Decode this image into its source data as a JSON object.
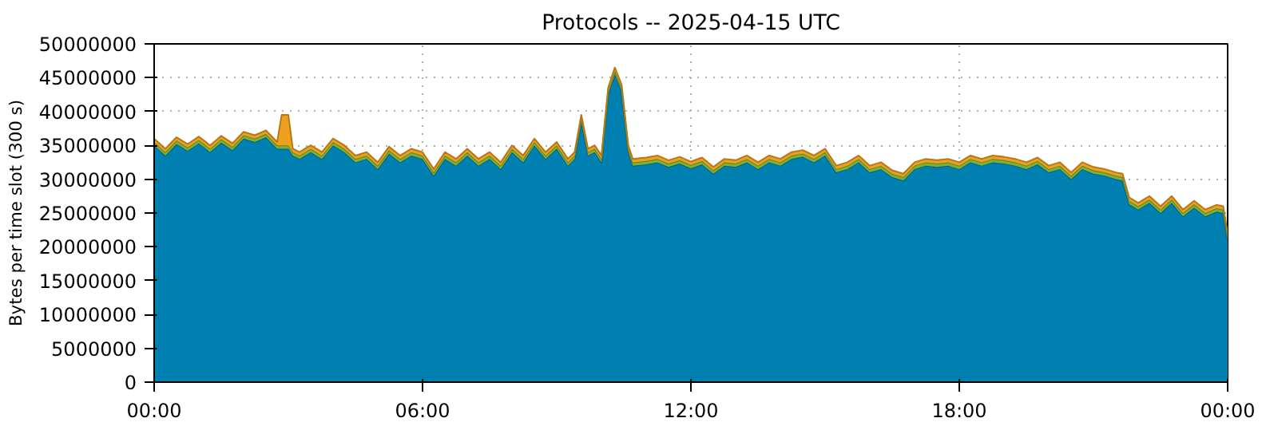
{
  "chart_data": {
    "type": "area",
    "stacked": true,
    "title": "Protocols -- 2025-04-15 UTC",
    "ylabel": "Bytes per time slot (300 s)",
    "x": [
      0,
      0.25,
      0.5,
      0.75,
      1.0,
      1.25,
      1.5,
      1.75,
      2.0,
      2.25,
      2.5,
      2.75,
      2.85,
      3.0,
      3.1,
      3.25,
      3.5,
      3.75,
      4.0,
      4.25,
      4.5,
      4.75,
      5.0,
      5.25,
      5.5,
      5.75,
      6.0,
      6.25,
      6.5,
      6.75,
      7.0,
      7.25,
      7.5,
      7.75,
      8.0,
      8.25,
      8.5,
      8.75,
      9.0,
      9.25,
      9.4,
      9.55,
      9.7,
      9.85,
      10.0,
      10.15,
      10.3,
      10.45,
      10.6,
      10.7,
      11.0,
      11.25,
      11.5,
      11.75,
      12.0,
      12.25,
      12.5,
      12.75,
      13.0,
      13.25,
      13.5,
      13.75,
      14.0,
      14.25,
      14.5,
      14.75,
      15.0,
      15.25,
      15.5,
      15.75,
      16.0,
      16.25,
      16.5,
      16.75,
      17.0,
      17.25,
      17.5,
      17.75,
      18.0,
      18.25,
      18.5,
      18.75,
      19.0,
      19.25,
      19.5,
      19.75,
      20.0,
      20.25,
      20.5,
      20.75,
      21.0,
      21.25,
      21.5,
      21.65,
      21.8,
      22.0,
      22.25,
      22.5,
      22.75,
      23.0,
      23.25,
      23.5,
      23.75,
      23.9,
      24.0
    ],
    "series": [
      {
        "color": "#0080b0",
        "values": [
          35000000,
          33500000,
          35200000,
          34200000,
          35300000,
          34000000,
          35400000,
          34300000,
          36000000,
          35500000,
          36200000,
          34500000,
          34500000,
          34500000,
          33500000,
          33000000,
          34000000,
          33000000,
          35000000,
          34000000,
          32500000,
          33000000,
          31500000,
          33800000,
          32500000,
          33500000,
          33000000,
          30500000,
          33000000,
          32000000,
          33500000,
          32000000,
          33000000,
          31500000,
          34000000,
          32500000,
          35000000,
          33000000,
          34500000,
          32000000,
          33000000,
          38500000,
          33500000,
          34000000,
          32500000,
          42500000,
          45500000,
          43000000,
          34000000,
          32000000,
          32200000,
          32500000,
          31800000,
          32300000,
          31600000,
          32200000,
          30800000,
          32000000,
          31800000,
          32500000,
          31500000,
          32500000,
          32000000,
          33000000,
          33300000,
          32500000,
          33500000,
          31000000,
          31500000,
          32500000,
          31000000,
          31500000,
          30300000,
          29800000,
          31500000,
          32000000,
          31800000,
          32000000,
          31500000,
          32500000,
          32000000,
          32500000,
          32300000,
          32000000,
          31500000,
          32200000,
          31000000,
          31500000,
          30000000,
          31500000,
          30800000,
          30500000,
          30000000,
          29800000,
          26300000,
          25500000,
          26500000,
          25000000,
          26500000,
          24500000,
          25800000,
          24500000,
          25200000,
          25000000,
          21000000
        ]
      },
      {
        "color": "#80b030",
        "values": [
          500000,
          500000,
          500000,
          500000,
          500000,
          500000,
          500000,
          500000,
          500000,
          500000,
          500000,
          500000,
          500000,
          500000,
          500000,
          500000,
          500000,
          500000,
          500000,
          500000,
          500000,
          500000,
          500000,
          500000,
          500000,
          500000,
          500000,
          500000,
          500000,
          500000,
          500000,
          500000,
          500000,
          500000,
          500000,
          500000,
          500000,
          500000,
          500000,
          500000,
          500000,
          500000,
          500000,
          500000,
          500000,
          500000,
          500000,
          500000,
          500000,
          500000,
          500000,
          500000,
          500000,
          500000,
          500000,
          500000,
          500000,
          500000,
          500000,
          500000,
          500000,
          500000,
          500000,
          500000,
          500000,
          500000,
          500000,
          500000,
          500000,
          500000,
          500000,
          500000,
          500000,
          500000,
          500000,
          500000,
          500000,
          500000,
          500000,
          500000,
          500000,
          500000,
          500000,
          500000,
          500000,
          500000,
          500000,
          500000,
          500000,
          500000,
          500000,
          500000,
          500000,
          500000,
          500000,
          500000,
          500000,
          500000,
          500000,
          500000,
          500000,
          500000,
          500000,
          500000,
          500000
        ]
      },
      {
        "color": "#f0a020",
        "values": [
          500000,
          500000,
          500000,
          500000,
          500000,
          500000,
          500000,
          500000,
          500000,
          500000,
          500000,
          500000,
          4500000,
          4500000,
          500000,
          500000,
          500000,
          500000,
          500000,
          500000,
          500000,
          500000,
          500000,
          500000,
          500000,
          500000,
          500000,
          500000,
          500000,
          500000,
          500000,
          500000,
          500000,
          500000,
          500000,
          500000,
          500000,
          500000,
          500000,
          500000,
          500000,
          500000,
          500000,
          500000,
          500000,
          500000,
          500000,
          500000,
          500000,
          500000,
          500000,
          500000,
          500000,
          500000,
          500000,
          500000,
          500000,
          500000,
          500000,
          500000,
          500000,
          500000,
          500000,
          500000,
          500000,
          500000,
          500000,
          500000,
          500000,
          500000,
          500000,
          500000,
          500000,
          500000,
          500000,
          500000,
          500000,
          500000,
          500000,
          500000,
          500000,
          500000,
          500000,
          500000,
          500000,
          500000,
          500000,
          500000,
          500000,
          500000,
          500000,
          500000,
          500000,
          500000,
          500000,
          500000,
          500000,
          500000,
          500000,
          500000,
          500000,
          500000,
          500000,
          500000,
          500000
        ]
      }
    ],
    "xlim": [
      0,
      24
    ],
    "ylim": [
      0,
      50000000
    ],
    "xticks": [
      {
        "value": 0,
        "label": "00:00"
      },
      {
        "value": 6,
        "label": "06:00"
      },
      {
        "value": 12,
        "label": "12:00"
      },
      {
        "value": 18,
        "label": "18:00"
      },
      {
        "value": 24,
        "label": "00:00"
      }
    ],
    "yticks": [
      0,
      5000000,
      10000000,
      15000000,
      20000000,
      25000000,
      30000000,
      35000000,
      40000000,
      45000000,
      50000000
    ],
    "grid": true
  }
}
